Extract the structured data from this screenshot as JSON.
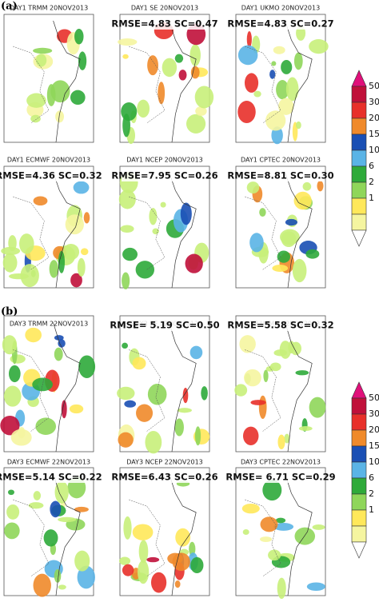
{
  "panels": [
    {
      "label": "(a)",
      "maps": [
        {
          "title": "DAY1 TRMM 20NOV2013"
        },
        {
          "title": "DAY1 SE 20NOV2013",
          "score": "RMSE=4.83 SC=0.47"
        },
        {
          "title": "DAY1 UKMO 20NOV2013",
          "score": "RMSE=4.83 SC=0.27"
        },
        {
          "title": "DAY1 ECMWF 20NOV2013",
          "score": "RMSE=4.36 SC=0.32"
        },
        {
          "title": "DAY1 NCEP 20NOV2013",
          "score": "RMSE=7.95 SC=0.26"
        },
        {
          "title": "DAY1 CPTEC 20NOV2013",
          "score": "RMSE=8.81 SC=0.30"
        }
      ],
      "colorbar": [
        "50",
        "30",
        "20",
        "15",
        "10",
        "6",
        "2",
        "1"
      ]
    },
    {
      "label": "(b)",
      "maps": [
        {
          "title": "DAY3 TRMM 22NOV2013"
        },
        {
          "title": "DAY3 SE 22NOV2013",
          "score": "RMSE= 5.19 SC=0.50"
        },
        {
          "title": "DAY3 UKMO 22NOV2013",
          "score": "RMSE=5.58 SC=0.32"
        },
        {
          "title": "DAY3 ECMWF 22NOV2013",
          "score": "RMSE=5.14 SC=0.22"
        },
        {
          "title": "DAY3 NCEP 22NOV2013",
          "score": "RMSE=6.43 SC=0.26"
        },
        {
          "title": "DAY3 CPTEC 22NOV2013",
          "score": "RMSE= 6.71 SC=0.29"
        }
      ],
      "colorbar": [
        "50",
        "30",
        "20",
        "15",
        "10",
        "6",
        "2",
        "1"
      ]
    }
  ]
}
